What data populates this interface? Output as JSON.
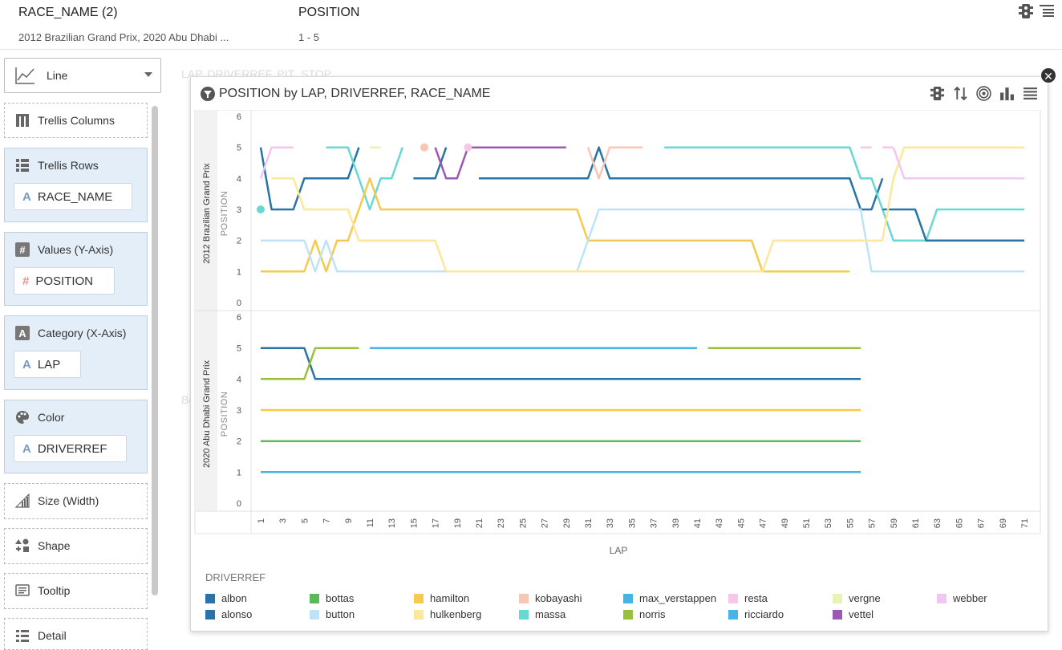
{
  "header": {
    "field1_label": "RACE_NAME (2)",
    "field1_value": "2012 Brazilian Grand Prix, 2020 Abu Dhabi ...",
    "field2_label": "POSITION",
    "field2_value": "1 - 5"
  },
  "sidebar": {
    "chart_type": "Line",
    "sections": {
      "trellis_columns": "Trellis Columns",
      "trellis_rows": "Trellis Rows",
      "trellis_rows_pill": "RACE_NAME",
      "values": "Values (Y-Axis)",
      "values_pill": "POSITION",
      "category": "Category (X-Axis)",
      "category_pill": "LAP",
      "color": "Color",
      "color_pill": "DRIVERREF",
      "size": "Size (Width)",
      "shape": "Shape",
      "tooltip": "Tooltip",
      "detail": "Detail"
    }
  },
  "ghost": {
    "behind": "LAP, DRIVERREF, PIT_STOP",
    "bo": "Bo"
  },
  "viz": {
    "title": "POSITION by LAP, DRIVERREF, RACE_NAME",
    "legend_title": "DRIVERREF"
  },
  "chart_data": {
    "type": "line",
    "title": "POSITION by LAP, DRIVERREF, RACE_NAME",
    "xlabel": "LAP",
    "ylabel": "POSITION",
    "x_ticks": [
      1,
      3,
      5,
      7,
      9,
      11,
      13,
      15,
      17,
      19,
      21,
      23,
      25,
      27,
      29,
      31,
      33,
      35,
      37,
      39,
      41,
      43,
      45,
      47,
      49,
      51,
      53,
      55,
      57,
      59,
      61,
      63,
      65,
      67,
      69,
      71
    ],
    "y_ticks": [
      0,
      1,
      2,
      3,
      4,
      5,
      6
    ],
    "ylim": [
      0,
      6
    ],
    "xlim": [
      1,
      71
    ],
    "legend_entries": [
      {
        "name": "albon",
        "color": "#2874a6"
      },
      {
        "name": "alonso",
        "color": "#2874a6"
      },
      {
        "name": "bottas",
        "color": "#5cb85c"
      },
      {
        "name": "button",
        "color": "#bfe3f6"
      },
      {
        "name": "hamilton",
        "color": "#f5ca4e"
      },
      {
        "name": "hulkenberg",
        "color": "#fbe89a"
      },
      {
        "name": "kobayashi",
        "color": "#f7c6b4"
      },
      {
        "name": "massa",
        "color": "#69d8d2"
      },
      {
        "name": "max_verstappen",
        "color": "#44b5e6"
      },
      {
        "name": "norris",
        "color": "#99bf3f"
      },
      {
        "name": "resta",
        "color": "#f6c7e7"
      },
      {
        "name": "ricciardo",
        "color": "#44b5e6"
      },
      {
        "name": "vergne",
        "color": "#e6f3b4"
      },
      {
        "name": "vettel",
        "color": "#9b59b6"
      },
      {
        "name": "webber",
        "color": "#f1c6f0"
      }
    ],
    "panels": [
      {
        "race": "2012 Brazilian Grand Prix",
        "series": [
          {
            "name": "alonso",
            "color": "#2874a6",
            "segments": [
              [
                [
                  1,
                  5
                ],
                [
                  2,
                  3
                ],
                [
                  4,
                  3
                ],
                [
                  5,
                  4
                ],
                [
                  9,
                  4
                ],
                [
                  10,
                  5
                ]
              ],
              [
                [
                  15,
                  4
                ],
                [
                  17,
                  4
                ],
                [
                  18,
                  5
                ]
              ],
              [
                [
                  21,
                  4
                ],
                [
                  31,
                  4
                ],
                [
                  32,
                  5
                ],
                [
                  33,
                  4
                ],
                [
                  55,
                  4
                ],
                [
                  56,
                  3
                ],
                [
                  57,
                  3
                ],
                [
                  58,
                  4
                ]
              ]
            ]
          },
          {
            "name": "massa",
            "color": "#69d8d2",
            "segments": [
              [
                [
                  7,
                  5
                ],
                [
                  9,
                  5
                ],
                [
                  10,
                  4
                ],
                [
                  11,
                  3
                ],
                [
                  12,
                  4
                ],
                [
                  13,
                  4
                ],
                [
                  14,
                  5
                ]
              ],
              [
                [
                  38,
                  5
                ],
                [
                  55,
                  5
                ],
                [
                  56,
                  4
                ],
                [
                  57,
                  4
                ],
                [
                  58,
                  3
                ],
                [
                  59,
                  2
                ],
                [
                  62,
                  2
                ],
                [
                  63,
                  3
                ],
                [
                  71,
                  3
                ]
              ]
            ]
          },
          {
            "name": "albon",
            "color": "#2874a6",
            "segments": [
              [
                [
                  58,
                  3
                ],
                [
                  61,
                  3
                ],
                [
                  62,
                  2
                ],
                [
                  71,
                  2
                ]
              ]
            ]
          },
          {
            "name": "hamilton",
            "color": "#f5ca4e",
            "segments": [
              [
                [
                  1,
                  1
                ],
                [
                  5,
                  1
                ],
                [
                  6,
                  2
                ],
                [
                  7,
                  1
                ],
                [
                  8,
                  2
                ],
                [
                  9,
                  2
                ],
                [
                  10,
                  3
                ],
                [
                  11,
                  4
                ],
                [
                  12,
                  3
                ],
                [
                  30,
                  3
                ],
                [
                  31,
                  2
                ],
                [
                  46,
                  2
                ],
                [
                  47,
                  1
                ],
                [
                  55,
                  1
                ]
              ]
            ]
          },
          {
            "name": "button",
            "color": "#bfe3f6",
            "segments": [
              [
                [
                  1,
                  2
                ],
                [
                  5,
                  2
                ],
                [
                  6,
                  1
                ],
                [
                  7,
                  2
                ],
                [
                  8,
                  1
                ],
                [
                  30,
                  1
                ],
                [
                  31,
                  2
                ],
                [
                  32,
                  3
                ],
                [
                  56,
                  3
                ],
                [
                  57,
                  1
                ],
                [
                  71,
                  1
                ]
              ]
            ]
          },
          {
            "name": "hulkenberg",
            "color": "#fbe89a",
            "segments": [
              [
                [
                  2,
                  4
                ],
                [
                  4,
                  4
                ],
                [
                  5,
                  3
                ],
                [
                  9,
                  3
                ],
                [
                  10,
                  2
                ],
                [
                  17,
                  2
                ],
                [
                  18,
                  1
                ],
                [
                  47,
                  1
                ],
                [
                  48,
                  2
                ],
                [
                  58,
                  2
                ],
                [
                  59,
                  4
                ],
                [
                  60,
                  5
                ],
                [
                  71,
                  5
                ]
              ]
            ]
          },
          {
            "name": "webber",
            "color": "#f1c6f0",
            "segments": [
              [
                [
                  1,
                  4
                ],
                [
                  2,
                  5
                ],
                [
                  4,
                  5
                ]
              ],
              [
                [
                  59,
                  5
                ],
                [
                  60,
                  4
                ],
                [
                  71,
                  4
                ]
              ]
            ]
          },
          {
            "name": "vettel",
            "color": "#9b59b6",
            "segments": [
              [
                [
                  17,
                  5
                ],
                [
                  18,
                  4
                ],
                [
                  19,
                  4
                ],
                [
                  20,
                  5
                ],
                [
                  29,
                  5
                ]
              ]
            ]
          },
          {
            "name": "kobayashi",
            "color": "#f7c6b4",
            "segments": [
              [
                [
                  31,
                  5
                ],
                [
                  32,
                  4
                ],
                [
                  33,
                  5
                ],
                [
                  36,
                  5
                ]
              ]
            ]
          },
          {
            "name": "vergne",
            "color": "#e6f3b4",
            "segments": [
              [
                [
                  11,
                  5
                ],
                [
                  12,
                  5
                ]
              ]
            ]
          },
          {
            "name": "resta",
            "color": "#f6c7e7",
            "segments": [
              [
                [
                  56,
                  5
                ],
                [
                  57,
                  5
                ]
              ],
              [
                [
                  58,
                  5
                ],
                [
                  59,
                  5
                ]
              ]
            ]
          }
        ],
        "points": [
          {
            "name": "massa",
            "color": "#69d8d2",
            "x": 1,
            "y": 3
          },
          {
            "name": "kobayashi",
            "color": "#f7c6b4",
            "x": 16,
            "y": 5
          },
          {
            "name": "resta",
            "color": "#f6c7e7",
            "x": 20,
            "y": 5
          }
        ]
      },
      {
        "race": "2020 Abu Dhabi Grand Prix",
        "series": [
          {
            "name": "albon",
            "color": "#2874a6",
            "segments": [
              [
                [
                  1,
                  5
                ],
                [
                  5,
                  5
                ],
                [
                  6,
                  4
                ],
                [
                  56,
                  4
                ]
              ]
            ]
          },
          {
            "name": "norris",
            "color": "#99bf3f",
            "segments": [
              [
                [
                  1,
                  4
                ],
                [
                  5,
                  4
                ],
                [
                  6,
                  5
                ],
                [
                  10,
                  5
                ]
              ],
              [
                [
                  42,
                  5
                ],
                [
                  56,
                  5
                ]
              ]
            ]
          },
          {
            "name": "max_verstappen",
            "color": "#44b5e6",
            "segments": [
              [
                [
                  11,
                  5
                ],
                [
                  41,
                  5
                ]
              ]
            ]
          },
          {
            "name": "hamilton",
            "color": "#f5ca4e",
            "segments": [
              [
                [
                  1,
                  3
                ],
                [
                  56,
                  3
                ]
              ]
            ]
          },
          {
            "name": "bottas",
            "color": "#5cb85c",
            "segments": [
              [
                [
                  1,
                  2
                ],
                [
                  56,
                  2
                ]
              ]
            ]
          },
          {
            "name": "ricciardo",
            "color": "#44b5e6",
            "segments": [
              [
                [
                  1,
                  1
                ],
                [
                  56,
                  1
                ]
              ]
            ]
          }
        ],
        "points": []
      }
    ]
  }
}
